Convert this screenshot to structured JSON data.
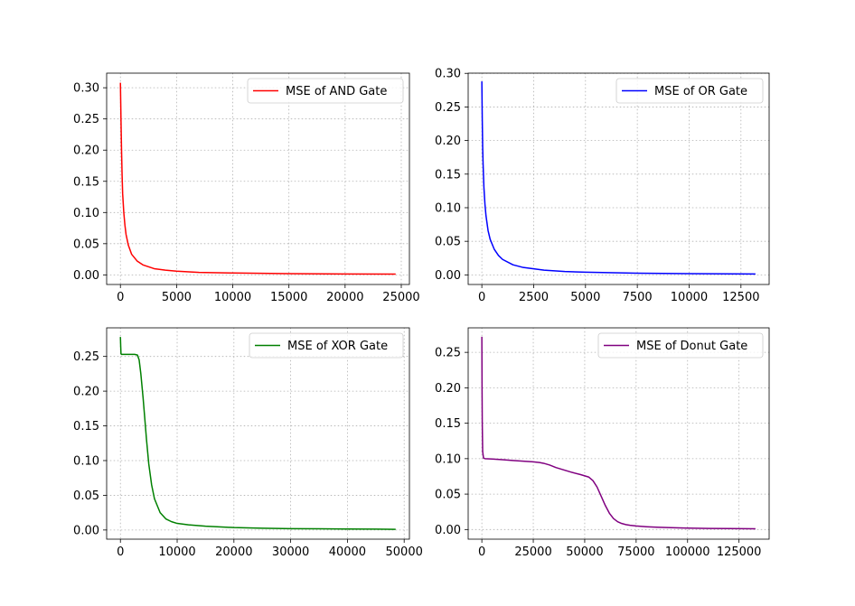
{
  "chart_data": [
    {
      "type": "line",
      "grid": true,
      "legend_position": "upper-right",
      "xlim": [
        -1225,
        25725
      ],
      "ylim": [
        -0.0154,
        0.3234
      ],
      "xticks": [
        0,
        5000,
        10000,
        15000,
        20000,
        25000
      ],
      "xtick_labels": [
        "0",
        "5000",
        "10000",
        "15000",
        "20000",
        "25000"
      ],
      "yticks": [
        0.0,
        0.05,
        0.1,
        0.15,
        0.2,
        0.25,
        0.3
      ],
      "ytick_labels": [
        "0.00",
        "0.05",
        "0.10",
        "0.15",
        "0.20",
        "0.25",
        "0.30"
      ],
      "series": [
        {
          "name": "MSE of AND Gate",
          "color": "#ff0000",
          "x": [
            0,
            50,
            100,
            150,
            200,
            300,
            400,
            500,
            700,
            1000,
            1500,
            2000,
            3000,
            4000,
            5000,
            7000,
            10000,
            15000,
            20000,
            24500
          ],
          "y": [
            0.308,
            0.25,
            0.2,
            0.16,
            0.13,
            0.1,
            0.08,
            0.065,
            0.048,
            0.033,
            0.022,
            0.016,
            0.01,
            0.0075,
            0.006,
            0.004,
            0.003,
            0.002,
            0.0015,
            0.0012
          ]
        }
      ]
    },
    {
      "type": "line",
      "grid": true,
      "legend_position": "upper-right",
      "xlim": [
        -660,
        13860
      ],
      "ylim": [
        -0.0143,
        0.3003
      ],
      "xticks": [
        0,
        2500,
        5000,
        7500,
        10000,
        12500
      ],
      "xtick_labels": [
        "0",
        "2500",
        "5000",
        "7500",
        "10000",
        "12500"
      ],
      "yticks": [
        0.0,
        0.05,
        0.1,
        0.15,
        0.2,
        0.25,
        0.3
      ],
      "ytick_labels": [
        "0.00",
        "0.05",
        "0.10",
        "0.15",
        "0.20",
        "0.25",
        "0.30"
      ],
      "series": [
        {
          "name": "MSE of OR Gate",
          "color": "#0000ff",
          "x": [
            0,
            20,
            40,
            60,
            100,
            150,
            200,
            300,
            400,
            600,
            800,
            1000,
            1500,
            2000,
            3000,
            4000,
            5000,
            7500,
            10000,
            13200
          ],
          "y": [
            0.288,
            0.23,
            0.19,
            0.165,
            0.13,
            0.105,
            0.088,
            0.066,
            0.053,
            0.038,
            0.029,
            0.023,
            0.015,
            0.011,
            0.007,
            0.005,
            0.004,
            0.0025,
            0.0018,
            0.0013
          ]
        }
      ]
    },
    {
      "type": "line",
      "grid": true,
      "legend_position": "upper-right",
      "xlim": [
        -2425,
        50925
      ],
      "ylim": [
        -0.0132,
        0.2912
      ],
      "xticks": [
        0,
        10000,
        20000,
        30000,
        40000,
        50000
      ],
      "xtick_labels": [
        "0",
        "10000",
        "20000",
        "30000",
        "40000",
        "50000"
      ],
      "yticks": [
        0.0,
        0.05,
        0.1,
        0.15,
        0.2,
        0.25
      ],
      "ytick_labels": [
        "0.00",
        "0.05",
        "0.10",
        "0.15",
        "0.20",
        "0.25"
      ],
      "series": [
        {
          "name": "MSE of XOR Gate",
          "color": "#008000",
          "x": [
            0,
            50,
            100,
            200,
            500,
            1000,
            2000,
            2500,
            3000,
            3300,
            3600,
            4000,
            4300,
            4600,
            5000,
            5500,
            6000,
            7000,
            8000,
            9000,
            10000,
            12000,
            15000,
            20000,
            25000,
            30000,
            35000,
            40000,
            45000,
            48500
          ],
          "y": [
            0.278,
            0.265,
            0.254,
            0.253,
            0.253,
            0.253,
            0.253,
            0.253,
            0.252,
            0.245,
            0.225,
            0.19,
            0.16,
            0.13,
            0.095,
            0.065,
            0.045,
            0.025,
            0.016,
            0.012,
            0.0095,
            0.0075,
            0.0055,
            0.0035,
            0.0025,
            0.002,
            0.0017,
            0.0014,
            0.0012,
            0.001
          ]
        }
      ]
    },
    {
      "type": "line",
      "grid": true,
      "legend_position": "upper-right",
      "xlim": [
        -6650,
        139650
      ],
      "ylim": [
        -0.0136,
        0.2846
      ],
      "xticks": [
        0,
        25000,
        50000,
        75000,
        100000,
        125000
      ],
      "xtick_labels": [
        "0",
        "25000",
        "50000",
        "75000",
        "100000",
        "125000"
      ],
      "yticks": [
        0.0,
        0.05,
        0.1,
        0.15,
        0.2,
        0.25
      ],
      "ytick_labels": [
        "0.00",
        "0.05",
        "0.10",
        "0.15",
        "0.20",
        "0.25"
      ],
      "series": [
        {
          "name": "MSE of Donut Gate",
          "color": "#800080",
          "x": [
            0,
            100,
            200,
            400,
            800,
            1500,
            5000,
            10000,
            15000,
            20000,
            25000,
            28000,
            30000,
            33000,
            36000,
            40000,
            44000,
            48000,
            52000,
            54000,
            56000,
            58000,
            60000,
            62000,
            64000,
            66000,
            68000,
            70000,
            72000,
            75000,
            80000,
            85000,
            90000,
            100000,
            110000,
            120000,
            133000
          ],
          "y": [
            0.272,
            0.2,
            0.15,
            0.11,
            0.101,
            0.1,
            0.0995,
            0.0985,
            0.0975,
            0.0965,
            0.0955,
            0.0945,
            0.0935,
            0.091,
            0.0875,
            0.084,
            0.0805,
            0.0775,
            0.074,
            0.069,
            0.06,
            0.047,
            0.034,
            0.023,
            0.0155,
            0.011,
            0.0085,
            0.007,
            0.006,
            0.005,
            0.004,
            0.0033,
            0.0028,
            0.002,
            0.0016,
            0.0013,
            0.001
          ]
        }
      ]
    }
  ]
}
